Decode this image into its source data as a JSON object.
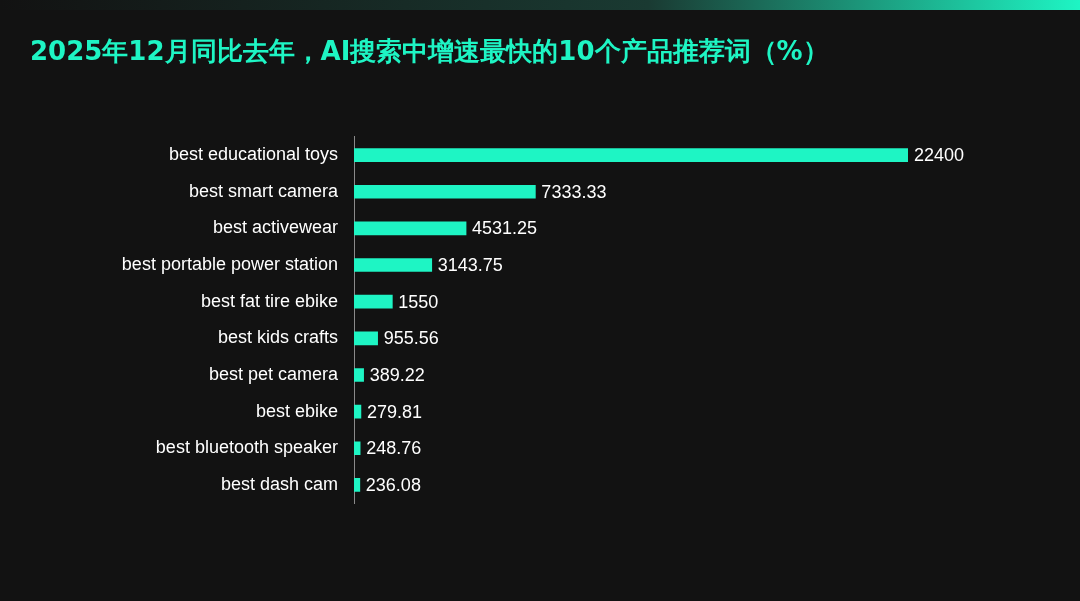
{
  "chart_data": {
    "type": "bar",
    "orientation": "horizontal",
    "title": "2025年12月同比去年，AI搜索中增速最快的10个产品推荐词（%）",
    "categories": [
      "best educational toys",
      "best smart camera",
      "best activewear",
      "best portable power station",
      "best fat tire ebike",
      "best kids crafts",
      "best pet camera",
      "best ebike",
      "best bluetooth speaker",
      "best dash cam"
    ],
    "values": [
      22400,
      7333.33,
      4531.25,
      3143.75,
      1550,
      955.56,
      389.22,
      279.81,
      248.76,
      236.08
    ],
    "color": "#1ef5c4",
    "data_labels": true
  }
}
